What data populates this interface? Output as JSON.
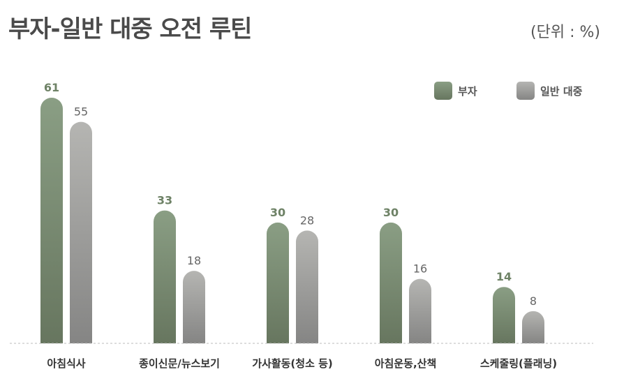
{
  "title": "부자-일반 대중 오전 루틴",
  "unit": "(단위 : %)",
  "colors": {
    "rich_top": "#8a9e84",
    "rich_bottom": "#67765f",
    "general_top": "#b5b5b2",
    "general_bottom": "#858584",
    "rich_label": "#6e8266",
    "general_label": "#666666"
  },
  "chart_data": {
    "type": "bar",
    "title": "부자-일반 대중 오전 루틴",
    "xlabel": "",
    "ylabel": "",
    "ylim": [
      0,
      61
    ],
    "grid": false,
    "legend_position": "top-right",
    "categories": [
      "아침식사",
      "종이신문/뉴스보기",
      "가사활동(청소 등)",
      "아침운동,산책",
      "스케줄링(플래닝)"
    ],
    "series": [
      {
        "name": "부자",
        "values": [
          61,
          33,
          30,
          30,
          14
        ]
      },
      {
        "name": "일반 대중",
        "values": [
          55,
          18,
          28,
          16,
          8
        ]
      }
    ]
  }
}
